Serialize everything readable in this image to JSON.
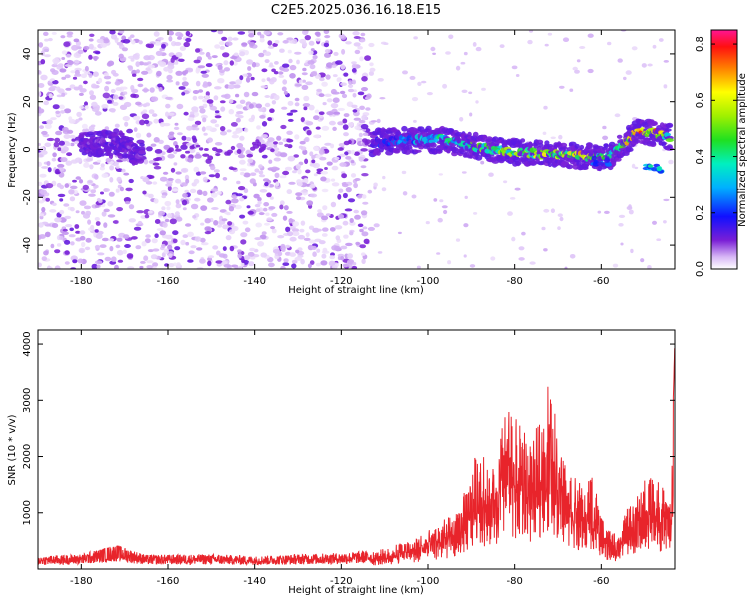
{
  "title": "C2E5.2025.036.16.18.E15",
  "colors": {
    "snr_line": "#e8242b",
    "noise_purple": "#7a1fd6",
    "frame": "#000000"
  },
  "chart_data": [
    {
      "type": "heatmap",
      "title": "C2E5.2025.036.16.18.E15",
      "xlabel": "Height of straight line (km)",
      "ylabel": "Frequency (Hz)",
      "xlim": [
        -190,
        -43
      ],
      "ylim": [
        -50,
        50
      ],
      "xticks": [
        -180,
        -160,
        -140,
        -120,
        -100,
        -80,
        -60
      ],
      "yticks": [
        -40,
        -20,
        0,
        20,
        40
      ],
      "grid": false,
      "colorbar": {
        "label": "Normalized spectral amplitude",
        "range": [
          0.0,
          0.85
        ],
        "ticks": [
          0.0,
          0.2,
          0.4,
          0.6,
          0.8
        ],
        "colormap": "rainbow (white-lavender-purple-blue-cyan-green-yellow-orange-red-magenta)"
      },
      "noise_region": {
        "x_from": -190,
        "x_to": -113,
        "freq_range": [
          -50,
          50
        ],
        "amplitude": 0.05
      },
      "signal_trace": {
        "x": [
          -180,
          -172,
          -166,
          -112,
          -104,
          -96,
          -88,
          -80,
          -72,
          -64,
          -58,
          -52,
          -48,
          -44
        ],
        "freq": [
          2,
          3,
          -2,
          3,
          4,
          4,
          1,
          -1,
          -2,
          -3,
          -3,
          7,
          7,
          5
        ],
        "amplitude": [
          0.12,
          0.15,
          0.1,
          0.2,
          0.35,
          0.45,
          0.55,
          0.6,
          0.65,
          0.7,
          0.5,
          0.8,
          0.85,
          0.5
        ]
      },
      "secondary_blobs": {
        "x": [
          -60,
          -48
        ],
        "freq": [
          -5,
          -8
        ],
        "amplitude": [
          0.3,
          0.4
        ]
      }
    },
    {
      "type": "line",
      "xlabel": "Height of straight line (km)",
      "ylabel": "SNR (10 * v/v)",
      "xlim": [
        -190,
        -43
      ],
      "ylim": [
        0,
        4250
      ],
      "xticks": [
        -180,
        -160,
        -140,
        -120,
        -100,
        -80,
        -60
      ],
      "yticks": [
        1000,
        2000,
        3000,
        4000
      ],
      "grid": false,
      "series": [
        {
          "color": "#e8242b",
          "x": [
            -190,
            -180,
            -172,
            -165,
            -150,
            -140,
            -130,
            -120,
            -113,
            -106,
            -100,
            -96,
            -93,
            -90,
            -88,
            -86,
            -84,
            -82,
            -80,
            -78,
            -76,
            -74,
            -72,
            -70,
            -68,
            -66,
            -64,
            -62,
            -60,
            -58,
            -56,
            -54,
            -52,
            -50,
            -48,
            -46,
            -44,
            -43
          ],
          "y": [
            200,
            230,
            380,
            220,
            230,
            200,
            230,
            250,
            290,
            480,
            680,
            900,
            1000,
            1800,
            2300,
            1700,
            2000,
            3000,
            2700,
            2500,
            2200,
            2800,
            3500,
            2500,
            2000,
            1700,
            1400,
            1800,
            900,
            700,
            600,
            1100,
            1300,
            1600,
            1800,
            1500,
            1200,
            4100
          ]
        }
      ]
    }
  ]
}
